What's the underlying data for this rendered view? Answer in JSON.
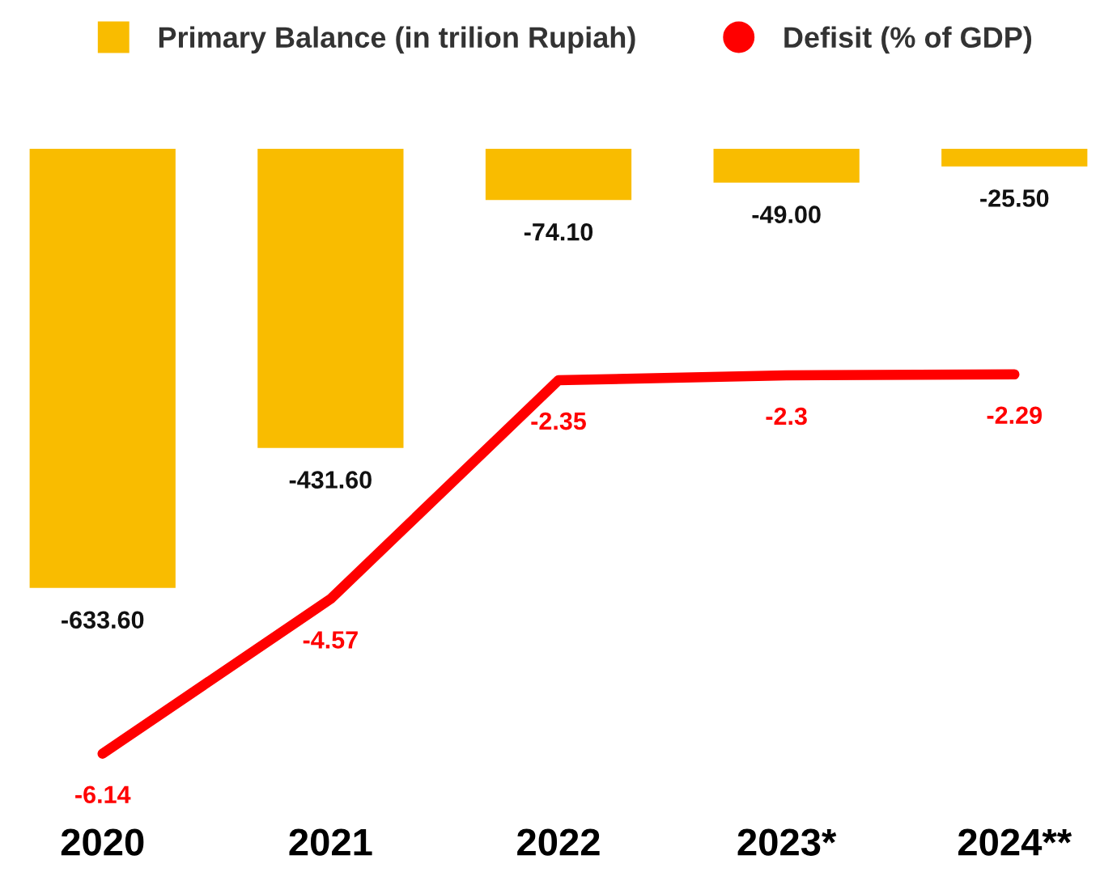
{
  "chart_data": {
    "type": "bar",
    "categories": [
      "2020",
      "2021",
      "2022",
      "2023*",
      "2024**"
    ],
    "series": [
      {
        "name": "Primary Balance (in trilion Rupiah)",
        "color": "#f9bc00",
        "values": [
          -633.6,
          -431.6,
          -74.1,
          -49.0,
          -25.5
        ],
        "value_labels": [
          "-633.60",
          "-431.60",
          "-74.10",
          "-49.00",
          "-25.50"
        ]
      },
      {
        "name": "Defisit (% of GDP)",
        "type": "line",
        "axis": "y2",
        "color": "#ff0000",
        "values": [
          -6.14,
          -4.57,
          -2.35,
          -2.3,
          -2.29
        ],
        "value_labels": [
          "-6.14",
          "-4.57",
          "-2.35",
          "-2.3",
          "-2.29"
        ]
      }
    ],
    "legend": "top",
    "grid": false,
    "marker": "none",
    "line_style": "solid"
  }
}
